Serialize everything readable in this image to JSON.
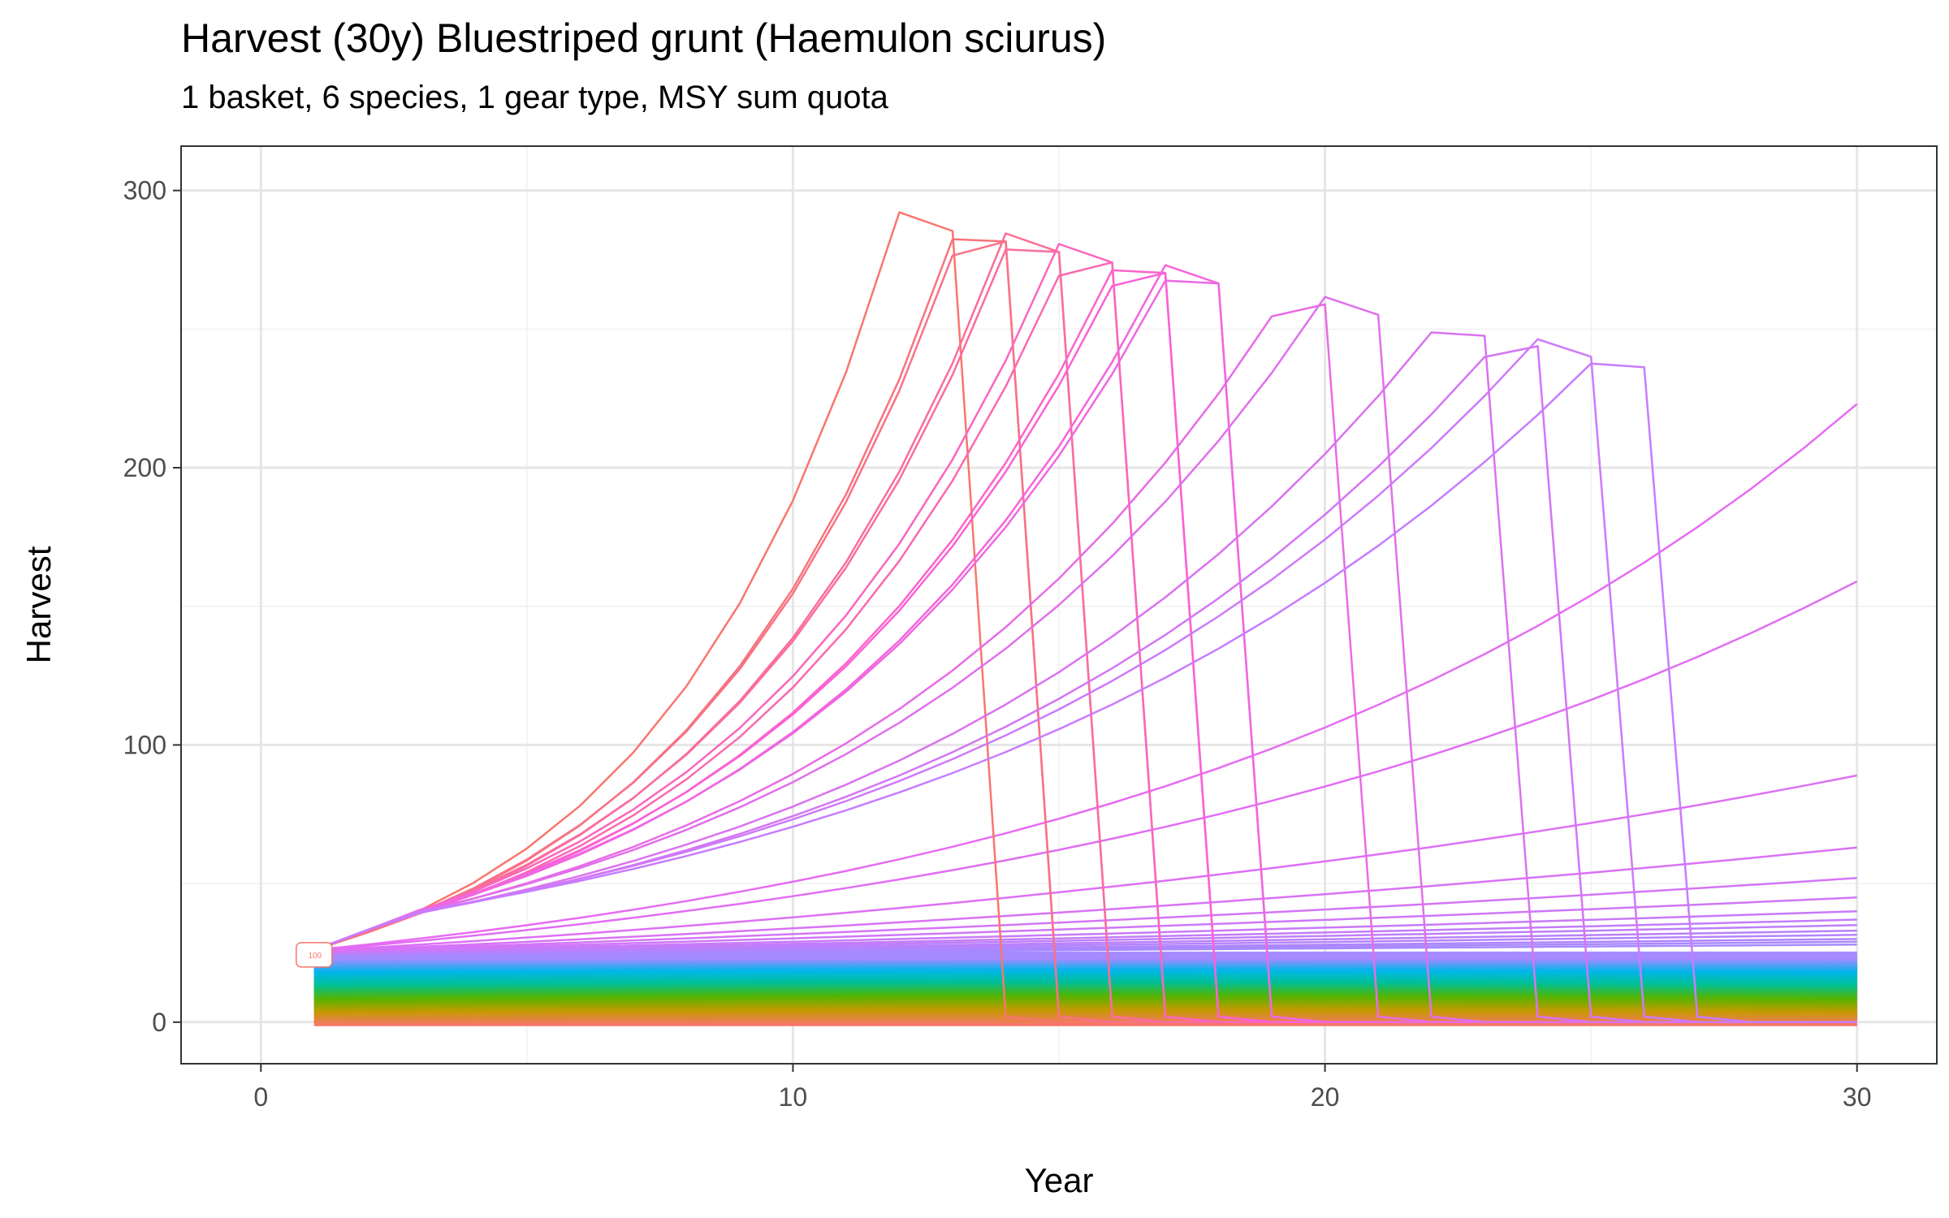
{
  "chart_data": {
    "type": "line",
    "title": "Harvest (30y) Bluestriped grunt (Haemulon sciurus)",
    "subtitle": "1 basket, 6 species, 1 gear type, MSY sum quota",
    "xlabel": "Year",
    "ylabel": "Harvest",
    "xlim": [
      -1.5,
      31.5
    ],
    "ylim": [
      -15,
      316
    ],
    "x_ticks": [
      0,
      10,
      20,
      30
    ],
    "y_ticks": [
      0,
      100,
      200,
      300
    ],
    "grid": true,
    "legend": "none",
    "years": [
      1,
      30
    ],
    "label_at_start": "100",
    "series_groups": {
      "low_band": {
        "count": 40,
        "start_range": [
          0,
          24
        ],
        "colors": [
          "#f8766d",
          "#c49a00",
          "#53b400",
          "#00c094",
          "#00b6eb",
          "#a58aff"
        ]
      },
      "crash_series": {
        "count": 17,
        "crash_years": [
          14,
          15,
          15,
          16,
          16,
          17,
          17,
          18,
          18,
          19,
          19,
          21,
          22,
          24,
          25,
          26,
          27
        ],
        "colors": [
          "#f8766d",
          "#fb61d7",
          "#c77cff"
        ]
      },
      "growth_series": {
        "count": 14,
        "values_at_30": [
          223,
          159,
          89,
          63,
          52,
          45,
          40,
          37,
          35,
          33,
          31.5,
          30,
          29,
          28
        ],
        "colors": [
          "#e76bf3",
          "#a58aff"
        ]
      }
    }
  }
}
